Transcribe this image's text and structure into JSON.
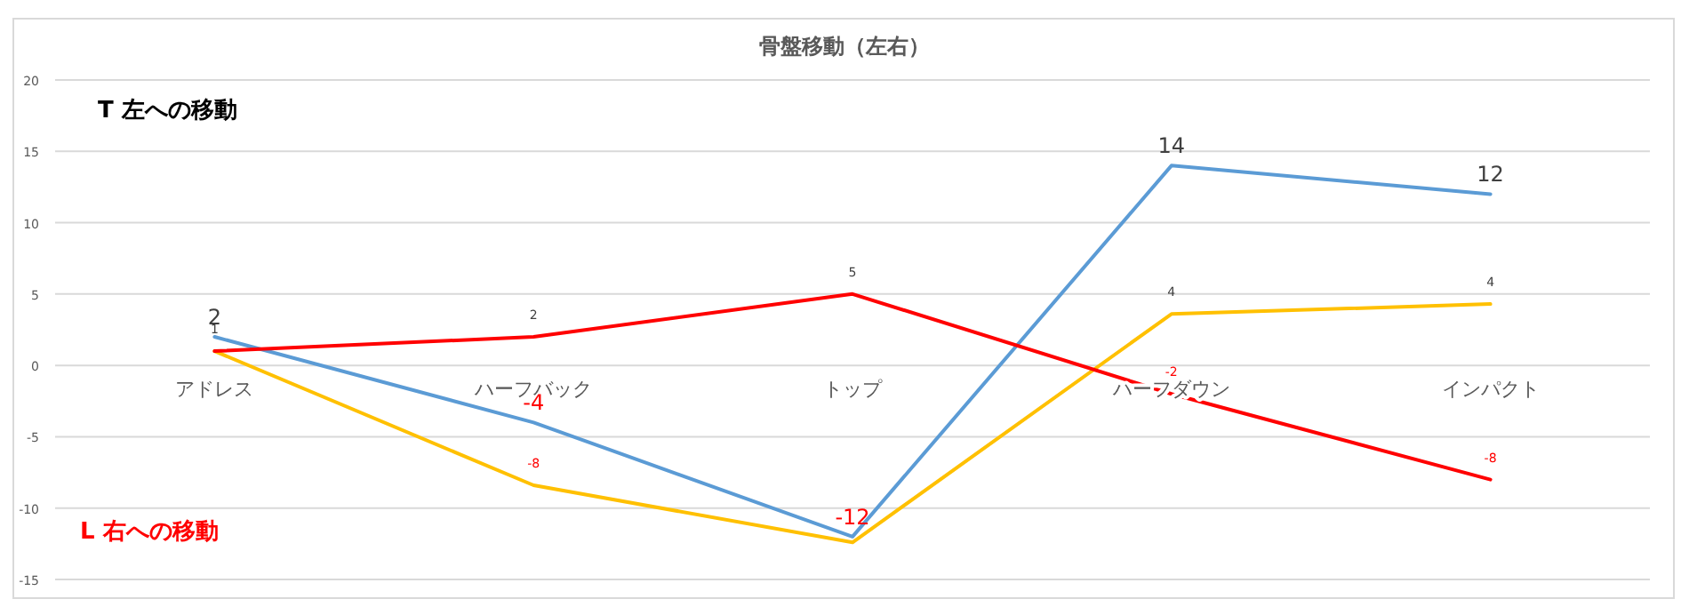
{
  "chart_data": {
    "type": "line",
    "title": "骨盤移動（左右）",
    "categories": [
      "アドレス",
      "ハーフバック",
      "トップ",
      "ハーフダウン",
      "インパクト"
    ],
    "series": [
      {
        "color": "#5b9bd5",
        "values": [
          2,
          -4,
          -12,
          14,
          12
        ],
        "value_labels": [
          "2",
          "-4",
          "-12",
          "14",
          "12"
        ]
      },
      {
        "color": "#ffc000",
        "values": [
          1,
          -8.4,
          -12.4,
          3.6,
          4.3
        ],
        "value_labels": [
          "1",
          "-8",
          null,
          "4",
          "4"
        ]
      },
      {
        "color": "#ff0000",
        "values": [
          1,
          2,
          5,
          -2,
          -8
        ],
        "value_labels": [
          null,
          "2",
          "5",
          "-2",
          "-8"
        ]
      }
    ],
    "ylim": [
      -15,
      20
    ],
    "yticks": [
      -15,
      -10,
      -5,
      0,
      5,
      10,
      15,
      20
    ],
    "grid": "y",
    "marker": "none",
    "line_style": "solid",
    "annotations": [
      "T 左への移動",
      "L 右への移動"
    ]
  }
}
